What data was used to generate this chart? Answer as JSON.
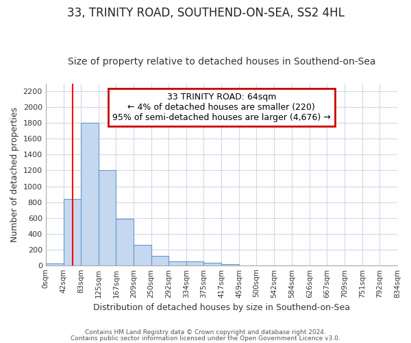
{
  "title": "33, TRINITY ROAD, SOUTHEND-ON-SEA, SS2 4HL",
  "subtitle": "Size of property relative to detached houses in Southend-on-Sea",
  "xlabel": "Distribution of detached houses by size in Southend-on-Sea",
  "ylabel": "Number of detached properties",
  "bin_labels": [
    "0sqm",
    "42sqm",
    "83sqm",
    "125sqm",
    "167sqm",
    "209sqm",
    "250sqm",
    "292sqm",
    "334sqm",
    "375sqm",
    "417sqm",
    "459sqm",
    "500sqm",
    "542sqm",
    "584sqm",
    "626sqm",
    "667sqm",
    "709sqm",
    "751sqm",
    "792sqm",
    "834sqm"
  ],
  "bar_heights": [
    25,
    840,
    1800,
    1200,
    590,
    255,
    120,
    47,
    47,
    30,
    18,
    0,
    0,
    0,
    0,
    0,
    0,
    0,
    0,
    0
  ],
  "bar_color": "#c5d8f0",
  "bar_edgecolor": "#6699cc",
  "annotation_text": "33 TRINITY ROAD: 64sqm\n← 4% of detached houses are smaller (220)\n95% of semi-detached houses are larger (4,676) →",
  "annotation_box_edgecolor": "#cc0000",
  "annotation_box_facecolor": "white",
  "redline_x": 64,
  "bin_edges": [
    0,
    42,
    83,
    125,
    167,
    209,
    250,
    292,
    334,
    375,
    417,
    459,
    500,
    542,
    584,
    626,
    667,
    709,
    751,
    792,
    834
  ],
  "ylim": [
    0,
    2300
  ],
  "yticks": [
    0,
    200,
    400,
    600,
    800,
    1000,
    1200,
    1400,
    1600,
    1800,
    2000,
    2200
  ],
  "footer1": "Contains HM Land Registry data © Crown copyright and database right 2024.",
  "footer2": "Contains public sector information licensed under the Open Government Licence v3.0.",
  "background_color": "#ffffff",
  "plot_background": "#ffffff",
  "grid_color": "#d0d8e8",
  "title_fontsize": 12,
  "subtitle_fontsize": 10,
  "annot_fontsize": 9
}
